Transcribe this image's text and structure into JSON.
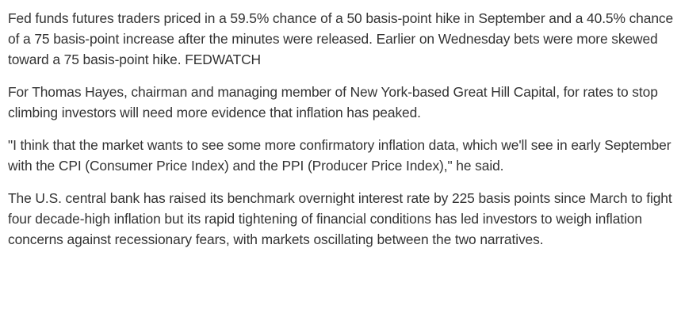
{
  "article": {
    "paragraphs": [
      {
        "text": "Fed funds futures traders priced in a 59.5% chance of a 50 basis-point hike in September and a 40.5% chance of a 75 basis-point increase after the minutes were released. Earlier on Wednesday bets were more skewed toward a 75 basis-point hike. ",
        "link": "FEDWATCH"
      },
      {
        "text": "For Thomas Hayes, chairman and managing member of New York-based Great Hill Capital, for rates to stop climbing investors will need more evidence that inflation has peaked."
      },
      {
        "text": "\"I think that the market wants to see some more confirmatory inflation data, which we'll see in early September with the CPI (Consumer Price Index) and the PPI (Producer Price Index),\" he said."
      },
      {
        "text": "The U.S. central bank has raised its benchmark overnight interest rate by 225 basis points since March to fight four decade-high inflation but its rapid tightening of financial conditions has led investors to weigh inflation concerns against recessionary fears, with markets oscillating between the two narratives."
      }
    ]
  }
}
